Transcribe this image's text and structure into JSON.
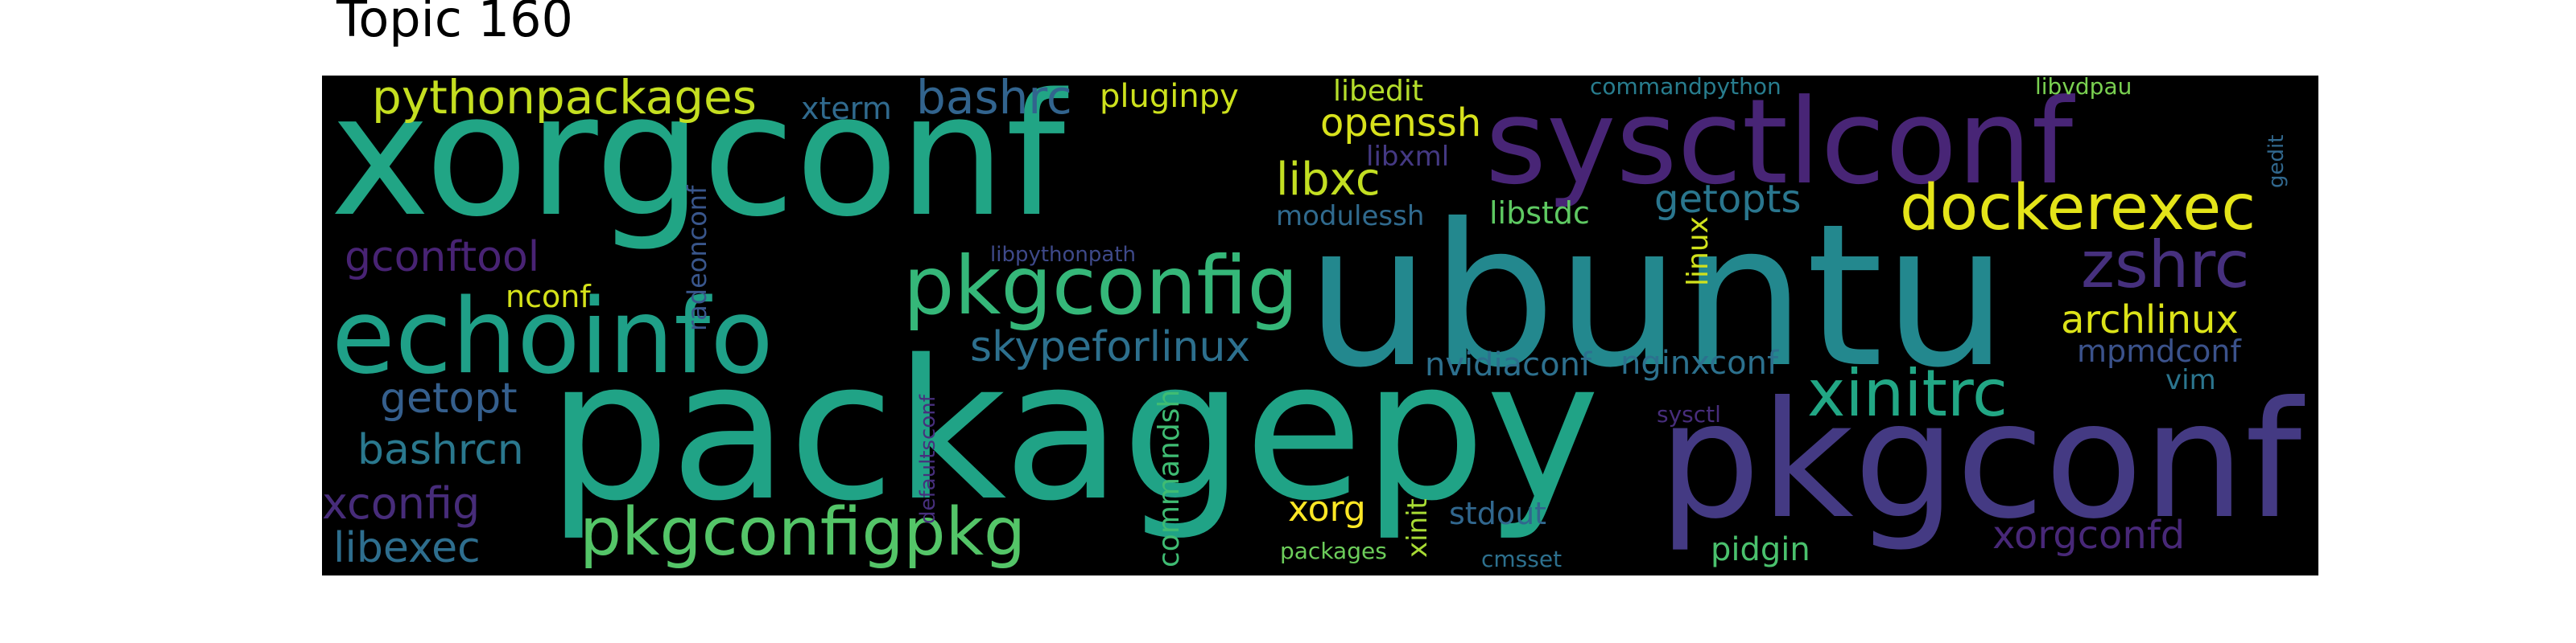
{
  "title": "Topic 160",
  "words": {
    "xorgconf": "xorgconf",
    "ubuntu": "ubuntu",
    "packagepy": "packagepy",
    "sysctlconf": "sysctlconf",
    "pkgconf": "pkgconf",
    "echoinfo": "echoinfo",
    "pkgconfig": "pkgconfig",
    "pkgconfigpkg": "pkgconfigpkg",
    "dockerexec": "dockerexec",
    "xinitrc": "xinitrc",
    "zshrc": "zshrc",
    "pythonpackages": "pythonpackages",
    "bashrc": "bashrc",
    "skypeforlinux": "skypeforlinux",
    "libxc": "libxc",
    "openssh": "openssh",
    "getopts": "getopts",
    "archlinux": "archlinux",
    "gconftool": "gconftool",
    "getopt": "getopt",
    "bashrcn": "bashrcn",
    "xconfig": "xconfig",
    "libexec": "libexec",
    "xorgconfd": "xorgconfd",
    "mpmdconf": "mpmdconf",
    "nvidiaconf": "nvidiaconf",
    "nginxconf": "nginxconf",
    "xorg": "xorg",
    "pluginpy": "pluginpy",
    "xterm": "xterm",
    "libedit": "libedit",
    "libxml": "libxml",
    "modulessh": "modulessh",
    "libstdc": "libstdc",
    "nconf": "nconf",
    "stdout": "stdout",
    "pidgin": "pidgin",
    "vim": "vim",
    "commandpython": "commandpython",
    "libvdpau": "libvdpau",
    "libpythonpath": "libpythonpath",
    "packages": "packages",
    "cmsset": "cmsset",
    "sysctl": "sysctl",
    "gedit": "gedit",
    "radeonconf": "radeonconf",
    "defaultsconf": "defaultsconf",
    "commandsh": "commandsh",
    "xinit": "xinit",
    "linux": "linux"
  }
}
